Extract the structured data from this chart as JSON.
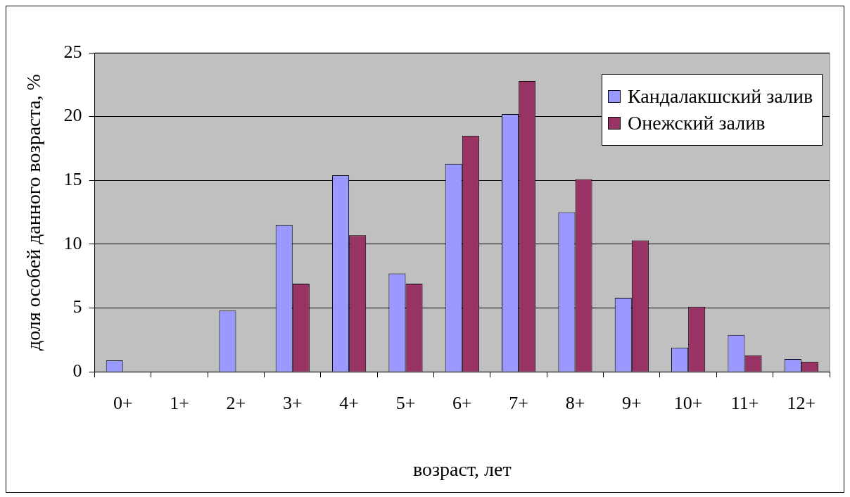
{
  "chart_data": {
    "type": "bar",
    "xlabel": "возраст, лет",
    "ylabel": "доля особей данного возраста, %",
    "categories": [
      "0+",
      "1+",
      "2+",
      "3+",
      "4+",
      "5+",
      "6+",
      "7+",
      "8+",
      "9+",
      "10+",
      "11+",
      "12+"
    ],
    "series": [
      {
        "name": "Кандалакшский залив",
        "color": "#9999ff",
        "values": [
          0.9,
          0,
          4.8,
          11.5,
          15.4,
          7.7,
          16.3,
          20.2,
          12.5,
          5.8,
          1.9,
          2.9,
          1.0
        ]
      },
      {
        "name": "Онежский залив",
        "color": "#993366",
        "values": [
          0,
          0,
          0,
          6.9,
          10.7,
          6.9,
          18.5,
          22.8,
          15.1,
          10.3,
          5.1,
          1.3,
          0.8
        ]
      }
    ],
    "ylim": [
      0,
      25
    ],
    "yticks": [
      0,
      5,
      10,
      15,
      20,
      25
    ],
    "grid": "y",
    "legend": "top right"
  }
}
